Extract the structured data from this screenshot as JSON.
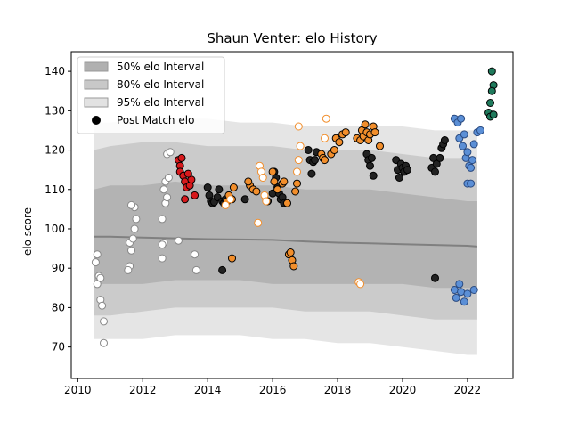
{
  "chart_data": {
    "type": "scatter",
    "title": "Shaun Venter: elo History",
    "xlabel": "",
    "ylabel": "elo score",
    "xlim": [
      2009.8,
      2023.4
    ],
    "ylim": [
      62,
      145
    ],
    "xticks": [
      2010,
      2012,
      2014,
      2016,
      2018,
      2020,
      2022
    ],
    "yticks": [
      70,
      80,
      90,
      100,
      110,
      120,
      130,
      140
    ],
    "grid": false,
    "legend": {
      "position": "top-left",
      "entries": [
        "50% elo Interval",
        "80% elo Interval",
        "95% elo Interval",
        "Post Match elo"
      ]
    },
    "colors": {
      "band50": "#b0b0b0",
      "band80": "#c8c8c8",
      "band95": "#e2e2e2",
      "median_line": "#808080",
      "open_white": "#ffffff",
      "red": "#d7191c",
      "black": "#222222",
      "orange": "#f28e2b",
      "grey": "#808080",
      "blue": "#5b8fd6",
      "teal": "#1f7a5c"
    },
    "bands": {
      "x": [
        2010.5,
        2011.0,
        2012.0,
        2013.0,
        2014.0,
        2015.0,
        2016.0,
        2017.0,
        2018.0,
        2019.0,
        2020.0,
        2021.0,
        2022.0,
        2022.3
      ],
      "p50_upper": [
        110,
        111,
        111,
        112,
        111,
        111,
        111,
        110,
        110,
        110,
        109,
        108,
        107,
        107
      ],
      "p50_lower": [
        86,
        86,
        86,
        87,
        87,
        87,
        86,
        86,
        86,
        86,
        86,
        85,
        85,
        85
      ],
      "p80_upper": [
        120,
        121,
        122,
        122,
        121,
        121,
        121,
        120,
        120,
        120,
        119,
        118,
        118,
        117
      ],
      "p80_lower": [
        78,
        78,
        79,
        80,
        80,
        80,
        80,
        79,
        79,
        79,
        78,
        77,
        77,
        77
      ],
      "p95_upper": [
        127,
        127,
        128,
        128,
        128,
        127,
        127,
        126,
        126,
        126,
        126,
        125,
        125,
        125
      ],
      "p95_lower": [
        72,
        72,
        72,
        73,
        73,
        73,
        72,
        72,
        71,
        71,
        70,
        69,
        68,
        68
      ],
      "median": [
        98,
        98,
        97.8,
        97.6,
        97.4,
        97.3,
        97.2,
        96.8,
        96.5,
        96.3,
        96.1,
        95.9,
        95.7,
        95.5
      ]
    },
    "series": [
      {
        "style": "open-white",
        "points": [
          [
            2010.55,
            91.5
          ],
          [
            2010.6,
            93.5
          ],
          [
            2010.65,
            88
          ],
          [
            2010.6,
            86
          ],
          [
            2010.7,
            82
          ],
          [
            2010.75,
            80.5
          ],
          [
            2010.8,
            76.5
          ],
          [
            2010.8,
            71
          ],
          [
            2010.7,
            87.5
          ],
          [
            2011.6,
            96.5
          ],
          [
            2011.65,
            94.5
          ],
          [
            2011.7,
            97.5
          ],
          [
            2011.75,
            100
          ],
          [
            2011.8,
            102.5
          ],
          [
            2011.75,
            105.5
          ],
          [
            2011.65,
            106
          ],
          [
            2011.6,
            90.5
          ],
          [
            2011.55,
            89.5
          ],
          [
            2012.6,
            92.5
          ],
          [
            2012.65,
            96.5
          ],
          [
            2012.6,
            102.5
          ],
          [
            2012.7,
            106.5
          ],
          [
            2012.75,
            108
          ],
          [
            2012.65,
            110
          ],
          [
            2012.7,
            112
          ],
          [
            2012.8,
            113
          ],
          [
            2012.75,
            119
          ],
          [
            2012.85,
            119.5
          ],
          [
            2012.6,
            96
          ],
          [
            2013.1,
            97
          ],
          [
            2013.6,
            93.5
          ],
          [
            2013.65,
            89.5
          ]
        ]
      },
      {
        "style": "red",
        "points": [
          [
            2013.1,
            117.5
          ],
          [
            2013.15,
            116
          ],
          [
            2013.2,
            118
          ],
          [
            2013.15,
            114.5
          ],
          [
            2013.25,
            113.5
          ],
          [
            2013.3,
            112
          ],
          [
            2013.35,
            110.5
          ],
          [
            2013.45,
            111
          ],
          [
            2013.5,
            112.5
          ],
          [
            2013.4,
            114
          ],
          [
            2013.6,
            108.5
          ],
          [
            2013.3,
            107.5
          ]
        ]
      },
      {
        "style": "black",
        "points": [
          [
            2014.0,
            110.5
          ],
          [
            2014.05,
            108.5
          ],
          [
            2014.1,
            107
          ],
          [
            2014.15,
            106.5
          ],
          [
            2014.2,
            106.8
          ],
          [
            2014.3,
            108
          ],
          [
            2014.35,
            110
          ],
          [
            2014.45,
            107
          ],
          [
            2014.5,
            106.5
          ],
          [
            2014.55,
            107.5
          ],
          [
            2015.15,
            107.5
          ],
          [
            2015.85,
            107
          ],
          [
            2016.0,
            109
          ],
          [
            2016.05,
            114.5
          ],
          [
            2016.1,
            113
          ],
          [
            2016.15,
            110.5
          ],
          [
            2016.2,
            109
          ],
          [
            2016.25,
            107.5
          ],
          [
            2016.3,
            108
          ],
          [
            2016.35,
            106.5
          ],
          [
            2017.1,
            120
          ],
          [
            2017.15,
            117.5
          ],
          [
            2017.2,
            114
          ],
          [
            2017.25,
            117
          ],
          [
            2017.3,
            117.5
          ],
          [
            2017.35,
            119.5
          ],
          [
            2018.9,
            119
          ],
          [
            2018.95,
            117.5
          ],
          [
            2019.0,
            116
          ],
          [
            2019.05,
            118
          ],
          [
            2019.1,
            113.5
          ],
          [
            2019.8,
            117.5
          ],
          [
            2019.85,
            115
          ],
          [
            2019.9,
            113
          ],
          [
            2019.95,
            116.5
          ],
          [
            2020.0,
            115.5
          ],
          [
            2020.05,
            114.5
          ],
          [
            2020.1,
            116
          ],
          [
            2020.15,
            115
          ],
          [
            2020.9,
            115.5
          ],
          [
            2020.95,
            118
          ],
          [
            2021.0,
            114.5
          ],
          [
            2021.05,
            116.5
          ],
          [
            2021.15,
            118
          ],
          [
            2021.2,
            120.5
          ],
          [
            2021.25,
            121.5
          ],
          [
            2021.3,
            122.5
          ],
          [
            2021.0,
            87.5
          ],
          [
            2014.45,
            89.5
          ]
        ]
      },
      {
        "style": "orange",
        "points": [
          [
            2014.6,
            107
          ],
          [
            2014.65,
            108.5
          ],
          [
            2014.75,
            107.5
          ],
          [
            2014.8,
            110.5
          ],
          [
            2014.75,
            92.5
          ],
          [
            2015.3,
            111
          ],
          [
            2015.25,
            112
          ],
          [
            2015.4,
            110
          ],
          [
            2015.5,
            109.5
          ],
          [
            2016.0,
            114.5
          ],
          [
            2016.05,
            112
          ],
          [
            2016.15,
            110
          ],
          [
            2016.3,
            111.5
          ],
          [
            2016.35,
            112
          ],
          [
            2016.45,
            106.5
          ],
          [
            2016.5,
            93.5
          ],
          [
            2016.55,
            94
          ],
          [
            2016.6,
            92
          ],
          [
            2016.65,
            90.5
          ],
          [
            2016.7,
            109.5
          ],
          [
            2016.75,
            111.5
          ],
          [
            2017.5,
            119
          ],
          [
            2017.55,
            118
          ],
          [
            2017.6,
            117.5
          ],
          [
            2017.8,
            119
          ],
          [
            2017.9,
            120
          ],
          [
            2017.95,
            123
          ],
          [
            2018.05,
            122
          ],
          [
            2018.15,
            124
          ],
          [
            2018.25,
            124.5
          ],
          [
            2018.6,
            123
          ],
          [
            2018.7,
            122.5
          ],
          [
            2018.75,
            125
          ],
          [
            2018.8,
            123.5
          ],
          [
            2018.85,
            126.5
          ],
          [
            2018.9,
            124.5
          ],
          [
            2018.95,
            122.5
          ],
          [
            2019.0,
            124
          ],
          [
            2019.1,
            126
          ],
          [
            2019.15,
            124.5
          ],
          [
            2019.3,
            121
          ]
        ]
      },
      {
        "style": "open-orange",
        "points": [
          [
            2014.55,
            106
          ],
          [
            2014.7,
            107.5
          ],
          [
            2015.6,
            116
          ],
          [
            2015.65,
            114.5
          ],
          [
            2015.7,
            113
          ],
          [
            2015.75,
            108.5
          ],
          [
            2015.8,
            107
          ],
          [
            2015.55,
            101.5
          ],
          [
            2016.75,
            114.5
          ],
          [
            2016.8,
            117.5
          ],
          [
            2016.85,
            121
          ],
          [
            2016.8,
            126
          ],
          [
            2017.6,
            123
          ],
          [
            2017.65,
            128
          ],
          [
            2018.65,
            86.5
          ],
          [
            2018.7,
            86
          ]
        ]
      },
      {
        "style": "blue",
        "points": [
          [
            2021.6,
            128
          ],
          [
            2021.7,
            127
          ],
          [
            2021.8,
            128
          ],
          [
            2021.75,
            123
          ],
          [
            2021.85,
            121
          ],
          [
            2021.9,
            124
          ],
          [
            2021.95,
            118
          ],
          [
            2022.0,
            119.5
          ],
          [
            2022.05,
            116
          ],
          [
            2022.1,
            115.5
          ],
          [
            2022.15,
            117.5
          ],
          [
            2022.2,
            121.5
          ],
          [
            2022.3,
            124.5
          ],
          [
            2022.4,
            125
          ],
          [
            2022.0,
            111.5
          ],
          [
            2022.1,
            111.5
          ],
          [
            2021.6,
            84.5
          ],
          [
            2021.65,
            82.5
          ],
          [
            2021.75,
            86
          ],
          [
            2021.8,
            84
          ],
          [
            2021.9,
            81.5
          ],
          [
            2022.0,
            83.5
          ],
          [
            2022.2,
            84.5
          ]
        ]
      },
      {
        "style": "teal",
        "points": [
          [
            2022.75,
            140
          ],
          [
            2022.8,
            136.5
          ],
          [
            2022.75,
            135
          ],
          [
            2022.7,
            132
          ],
          [
            2022.65,
            129.5
          ],
          [
            2022.7,
            128.5
          ],
          [
            2022.8,
            129
          ]
        ]
      }
    ]
  }
}
